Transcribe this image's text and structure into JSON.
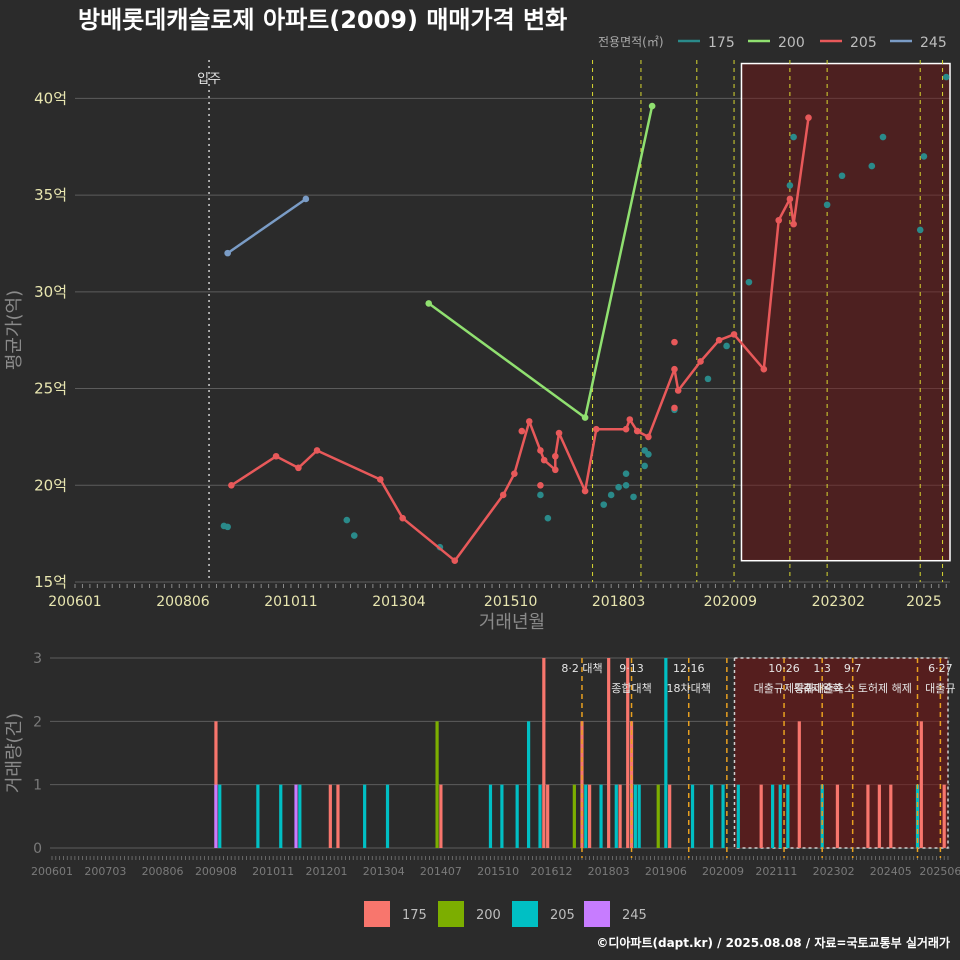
{
  "caption": "©디아파트(dapt.kr) / 2025.08.08 / 자료=국토교통부 실거래가",
  "colors": {
    "175": "#2a8a8a",
    "200": "#90e070",
    "205": "#e8595a",
    "245": "#7a9cc6"
  },
  "bar_colors": {
    "175": "#f8766d",
    "200": "#7cae00",
    "205": "#00bfc4",
    "245": "#c77cff"
  },
  "chart_data": [
    {
      "type": "line",
      "title": "방배롯데캐슬로제 아파트(2009) 매매가격 변화",
      "xlabel": "거래년월",
      "ylabel": "평균가(억)",
      "xlim": [
        "2006-01",
        "2025-08"
      ],
      "ylim": [
        15,
        42.5
      ],
      "x_ticks": [
        "200601",
        "200806",
        "201011",
        "201304",
        "201510",
        "201803",
        "202009",
        "202302",
        "2025"
      ],
      "y_ticks": [
        "15억",
        "20억",
        "25억",
        "30억",
        "35억",
        "40억"
      ],
      "grid": true,
      "legend_title": "전용면적(㎡)",
      "legend_position": "top-right",
      "event_label": "입주",
      "event_date": "2009-01",
      "policy_dates": [
        "2017-08",
        "2018-09",
        "2019-12",
        "2020-10",
        "2022-01",
        "2022-11",
        "2024-12",
        "2025-06"
      ],
      "highlight": {
        "from": "2020-12",
        "to": "2025-08",
        "ymin": 16.1,
        "ymax": 41.8
      },
      "series": [
        {
          "name": "175",
          "mode": "points",
          "points": [
            [
              "2009-05",
              17.9
            ],
            [
              "2009-06",
              17.85
            ],
            [
              "2012-02",
              18.2
            ],
            [
              "2012-04",
              17.4
            ],
            [
              "2014-03",
              16.8
            ],
            [
              "2016-06",
              19.5
            ],
            [
              "2016-08",
              18.3
            ],
            [
              "2017-11",
              19.0
            ],
            [
              "2018-01",
              19.5
            ],
            [
              "2018-03",
              19.9
            ],
            [
              "2018-05",
              20.6
            ],
            [
              "2018-05",
              20.0
            ],
            [
              "2018-07",
              19.4
            ],
            [
              "2018-10",
              21.8
            ],
            [
              "2018-10",
              21.0
            ],
            [
              "2018-11",
              21.6
            ],
            [
              "2019-06",
              23.9
            ],
            [
              "2020-03",
              25.5
            ],
            [
              "2020-08",
              27.2
            ],
            [
              "2021-02",
              30.5
            ],
            [
              "2022-01",
              35.5
            ],
            [
              "2022-02",
              38.0
            ],
            [
              "2022-11",
              34.5
            ],
            [
              "2023-03",
              36.0
            ],
            [
              "2023-11",
              36.5
            ],
            [
              "2024-02",
              38.0
            ],
            [
              "2024-12",
              33.2
            ],
            [
              "2025-01",
              37.0
            ],
            [
              "2025-07",
              41.1
            ]
          ]
        },
        {
          "name": "200",
          "mode": "line",
          "points": [
            [
              "2013-12",
              29.4
            ],
            [
              "2017-06",
              23.5
            ],
            [
              "2018-12",
              39.6
            ]
          ]
        },
        {
          "name": "205",
          "mode": "line",
          "points": [
            [
              "2009-07",
              20.0
            ],
            [
              "2010-07",
              21.5
            ],
            [
              "2011-01",
              20.9
            ],
            [
              "2011-06",
              21.8
            ],
            [
              "2012-11",
              20.3
            ],
            [
              "2013-05",
              18.3
            ],
            [
              "2014-07",
              16.1
            ],
            [
              "2015-08",
              19.5
            ],
            [
              "2015-11",
              20.6
            ],
            [
              "2016-03",
              23.3
            ],
            [
              "2016-06",
              21.8
            ],
            [
              "2016-07",
              21.3
            ],
            [
              "2016-10",
              20.8
            ],
            [
              "2016-10",
              21.5
            ],
            [
              "2016-11",
              22.7
            ],
            [
              "2017-06",
              19.7
            ],
            [
              "2017-09",
              22.9
            ],
            [
              "2018-05",
              22.9
            ],
            [
              "2018-06",
              23.4
            ],
            [
              "2018-08",
              22.8
            ],
            [
              "2018-11",
              22.5
            ],
            [
              "2019-06",
              26.0
            ],
            [
              "2019-07",
              24.9
            ],
            [
              "2020-01",
              26.4
            ],
            [
              "2020-06",
              27.5
            ],
            [
              "2020-10",
              27.8
            ],
            [
              "2021-06",
              26.0
            ],
            [
              "2021-10",
              33.7
            ],
            [
              "2022-01",
              34.8
            ],
            [
              "2022-02",
              33.5
            ],
            [
              "2022-06",
              39.0
            ]
          ],
          "extra_points": [
            [
              "2016-01",
              22.8
            ],
            [
              "2016-06",
              20.0
            ],
            [
              "2019-06",
              27.4
            ],
            [
              "2019-06",
              24.0
            ]
          ]
        },
        {
          "name": "245",
          "mode": "line",
          "points": [
            [
              "2009-06",
              32.0
            ],
            [
              "2011-03",
              34.8
            ]
          ]
        }
      ]
    },
    {
      "type": "bar",
      "xlabel": "",
      "ylabel": "거래량(건)",
      "xlim": [
        "2006-01",
        "2025-08"
      ],
      "ylim": [
        0,
        3
      ],
      "y_ticks": [
        "0",
        "1",
        "2",
        "3"
      ],
      "x_ticks": [
        "200601",
        "200703",
        "200806",
        "200908",
        "201011",
        "201201",
        "201304",
        "201407",
        "201510",
        "201612",
        "201803",
        "201906",
        "202009",
        "202111",
        "202302",
        "202405",
        "202506"
      ],
      "series_names": [
        "175",
        "200",
        "205",
        "245"
      ],
      "highlight": {
        "from": "2020-12",
        "to": "2025-08"
      },
      "policy_events": [
        {
          "date": "2017-08",
          "line1": "8·2 대책",
          "line2": ""
        },
        {
          "date": "2018-09",
          "line1": "9·13",
          "line2": "종합대책"
        },
        {
          "date": "2019-12",
          "line1": "12·16",
          "line2": "18차대책"
        },
        {
          "date": "2020-10",
          "line1": "",
          "line2": ""
        },
        {
          "date": "2022-01",
          "line1": "10·26",
          "line2": "대출규제강화"
        },
        {
          "date": "2022-11",
          "line1": "1·3",
          "line2": "규제완화"
        },
        {
          "date": "2023-07",
          "line1": "9·7",
          "line2": "특례대출축소 토허제 해제"
        },
        {
          "date": "2024-12",
          "line1": "",
          "line2": ""
        },
        {
          "date": "2025-06",
          "line1": "6·27",
          "line2": "대출규"
        }
      ],
      "bars": [
        {
          "m": "2009-08",
          "s": "175",
          "v": 2
        },
        {
          "m": "2009-08",
          "s": "245",
          "v": 1
        },
        {
          "m": "2009-09",
          "s": "205",
          "v": 1
        },
        {
          "m": "2010-07",
          "s": "205",
          "v": 1
        },
        {
          "m": "2011-01",
          "s": "205",
          "v": 1
        },
        {
          "m": "2011-05",
          "s": "245",
          "v": 1
        },
        {
          "m": "2011-06",
          "s": "205",
          "v": 1
        },
        {
          "m": "2012-02",
          "s": "175",
          "v": 1
        },
        {
          "m": "2012-04",
          "s": "175",
          "v": 1
        },
        {
          "m": "2012-11",
          "s": "205",
          "v": 1
        },
        {
          "m": "2013-05",
          "s": "205",
          "v": 1
        },
        {
          "m": "2014-06",
          "s": "200",
          "v": 2
        },
        {
          "m": "2014-07",
          "s": "175",
          "v": 1
        },
        {
          "m": "2015-08",
          "s": "205",
          "v": 1
        },
        {
          "m": "2015-11",
          "s": "205",
          "v": 1
        },
        {
          "m": "2016-03",
          "s": "205",
          "v": 1
        },
        {
          "m": "2016-06",
          "s": "205",
          "v": 2
        },
        {
          "m": "2016-09",
          "s": "205",
          "v": 1
        },
        {
          "m": "2016-10",
          "s": "175",
          "v": 3
        },
        {
          "m": "2016-11",
          "s": "175",
          "v": 1
        },
        {
          "m": "2017-06",
          "s": "200",
          "v": 1
        },
        {
          "m": "2017-08",
          "s": "175",
          "v": 2
        },
        {
          "m": "2017-09",
          "s": "205",
          "v": 1
        },
        {
          "m": "2017-10",
          "s": "175",
          "v": 1
        },
        {
          "m": "2018-01",
          "s": "205",
          "v": 1
        },
        {
          "m": "2018-03",
          "s": "175",
          "v": 3
        },
        {
          "m": "2018-05",
          "s": "205",
          "v": 1
        },
        {
          "m": "2018-06",
          "s": "175",
          "v": 1
        },
        {
          "m": "2018-08",
          "s": "175",
          "v": 3
        },
        {
          "m": "2018-09",
          "s": "175",
          "v": 2
        },
        {
          "m": "2018-10",
          "s": "205",
          "v": 1
        },
        {
          "m": "2018-11",
          "s": "205",
          "v": 1
        },
        {
          "m": "2019-04",
          "s": "200",
          "v": 1
        },
        {
          "m": "2019-06",
          "s": "205",
          "v": 3
        },
        {
          "m": "2019-07",
          "s": "175",
          "v": 1
        },
        {
          "m": "2020-01",
          "s": "205",
          "v": 1
        },
        {
          "m": "2020-06",
          "s": "205",
          "v": 1
        },
        {
          "m": "2020-09",
          "s": "205",
          "v": 1
        },
        {
          "m": "2021-01",
          "s": "205",
          "v": 1
        },
        {
          "m": "2021-07",
          "s": "175",
          "v": 1
        },
        {
          "m": "2021-10",
          "s": "205",
          "v": 1
        },
        {
          "m": "2021-12",
          "s": "205",
          "v": 1
        },
        {
          "m": "2022-02",
          "s": "205",
          "v": 1
        },
        {
          "m": "2022-05",
          "s": "175",
          "v": 2
        },
        {
          "m": "2022-11",
          "s": "205",
          "v": 1
        },
        {
          "m": "2023-03",
          "s": "175",
          "v": 1
        },
        {
          "m": "2023-11",
          "s": "175",
          "v": 1
        },
        {
          "m": "2024-02",
          "s": "175",
          "v": 1
        },
        {
          "m": "2024-05",
          "s": "175",
          "v": 1
        },
        {
          "m": "2024-12",
          "s": "205",
          "v": 1
        },
        {
          "m": "2025-01",
          "s": "175",
          "v": 2
        },
        {
          "m": "2025-07",
          "s": "175",
          "v": 1
        }
      ]
    }
  ]
}
